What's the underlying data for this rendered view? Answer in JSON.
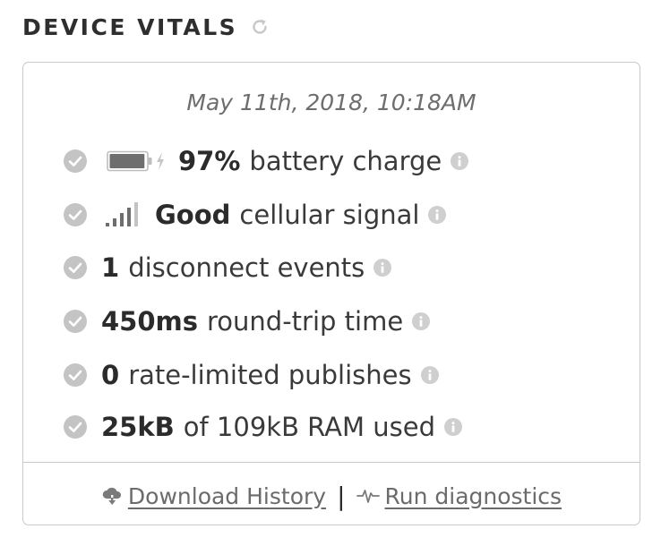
{
  "header": {
    "title": "DEVICE VITALS",
    "refresh_icon": "refresh-icon"
  },
  "card": {
    "timestamp": "May 11th, 2018, 10:18AM",
    "vitals": [
      {
        "icon": "battery-icon",
        "value": "97%",
        "label": "battery charge",
        "battery_level": 0.97
      },
      {
        "icon": "signal-bars-icon",
        "value": "Good",
        "label": "cellular signal"
      },
      {
        "value": "1",
        "label": "disconnect events"
      },
      {
        "value": "450ms",
        "label": "round-trip time"
      },
      {
        "value": "0",
        "label": "rate-limited publishes"
      },
      {
        "value": "25kB",
        "label": "of 109kB RAM used"
      }
    ],
    "footer": {
      "download_label": "Download History",
      "separator": "|",
      "diagnostics_label": "Run diagnostics"
    }
  },
  "colors": {
    "check": "#c4c4c4",
    "info": "#cfcfcf",
    "text": "#333333",
    "muted": "#6b6b6b",
    "border": "#c9c9c9"
  }
}
